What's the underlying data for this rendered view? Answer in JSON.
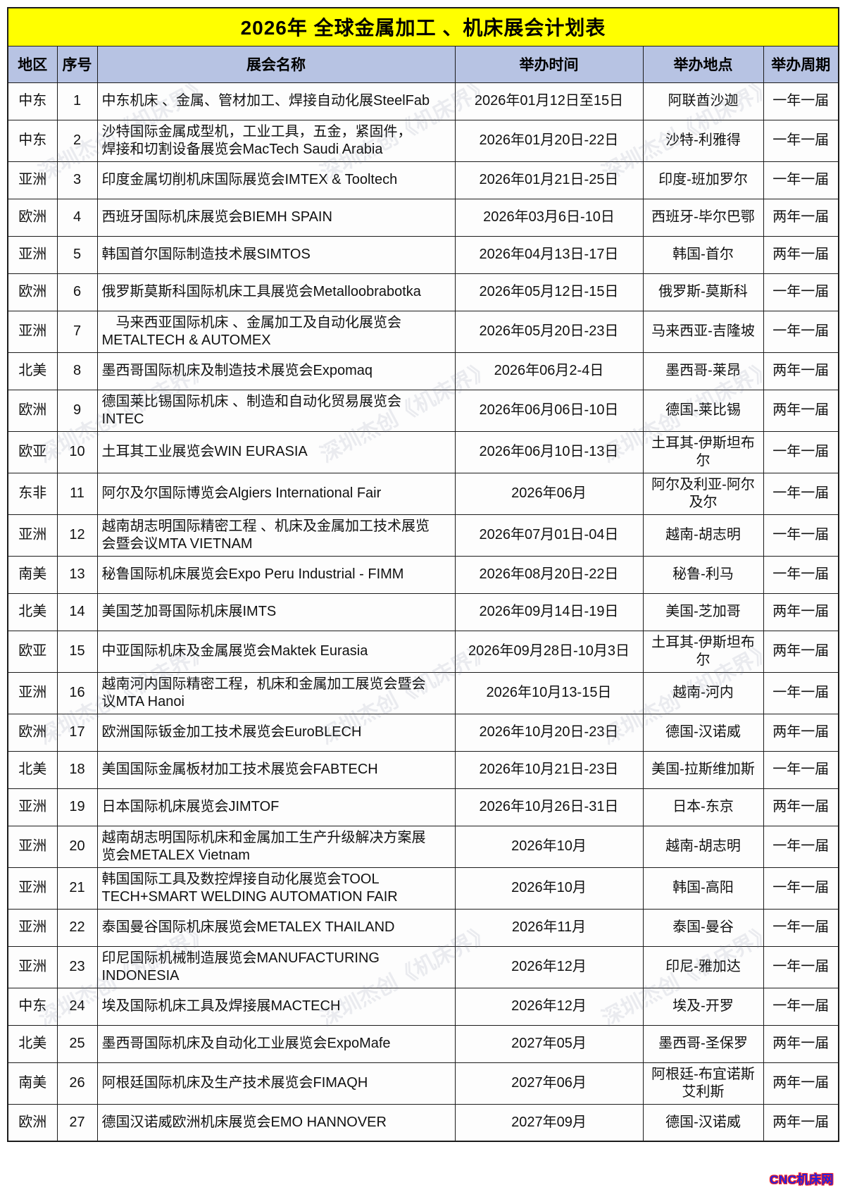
{
  "page": {
    "title": "2026年 全球金属加工 、机床展会计划表",
    "watermark_text": "深圳杰创《机床界》",
    "corner_logo": "CNC机床网"
  },
  "colors": {
    "title_bg": "#ffff00",
    "header_bg": "#b7c3e3",
    "border": "#1c1c1c",
    "logo_blue": "#2222dd",
    "logo_red": "#ff2222"
  },
  "table": {
    "columns": [
      "地区",
      "序号",
      "展会名称",
      "举办时间",
      "举办地点",
      "举办周期"
    ],
    "rows": [
      {
        "region": "中东",
        "no": "1",
        "name": "中东机床 、金属、管材加工、焊接自动化展SteelFab",
        "time": "2026年01月12日至15日",
        "location": "阿联酋沙迦",
        "cycle": "一年一届",
        "group_start": true
      },
      {
        "region": "中东",
        "no": "2",
        "name": "沙特国际金属成型机，工业工具，五金，紧固件，\n焊接和切割设备展览会MacTech Saudi Arabia",
        "time": "2026年01月20日-22日",
        "location": "沙特-利雅得",
        "cycle": "一年一届",
        "group_start": false
      },
      {
        "region": "亚洲",
        "no": "3",
        "name": "印度金属切削机床国际展览会IMTEX & Tooltech",
        "time": "2026年01月21日-25日",
        "location": "印度-班加罗尔",
        "cycle": "一年一届",
        "group_start": false
      },
      {
        "region": "欧洲",
        "no": "4",
        "name": "西班牙国际机床展览会BIEMH SPAIN",
        "time": "2026年03月6日-10日",
        "location": "西班牙-毕尔巴鄂",
        "cycle": "两年一届",
        "group_start": false
      },
      {
        "region": "亚洲",
        "no": "5",
        "name": "韩国首尔国际制造技术展SIMTOS",
        "time": "2026年04月13日-17日",
        "location": "韩国-首尔",
        "cycle": "两年一届",
        "group_start": false
      },
      {
        "region": "欧洲",
        "no": "6",
        "name": "俄罗斯莫斯科国际机床工具展览会Metalloobrabotka",
        "time": "2026年05月12日-15日",
        "location": "俄罗斯-莫斯科",
        "cycle": "一年一届",
        "group_start": true
      },
      {
        "region": "亚洲",
        "no": "7",
        "name": "　马来西亚国际机床 、金属加工及自动化展览会\nMETALTECH & AUTOMEX",
        "time": "2026年05月20日-23日",
        "location": "马来西亚-吉隆坡",
        "cycle": "一年一届",
        "group_start": true
      },
      {
        "region": "北美",
        "no": "8",
        "name": "墨西哥国际机床及制造技术展览会Expomaq",
        "time": "2026年06月2-4日",
        "location": "墨西哥-莱昂",
        "cycle": "两年一届",
        "group_start": true
      },
      {
        "region": "欧洲",
        "no": "9",
        "name": "德国莱比锡国际机床 、制造和自动化贸易展览会\nINTEC",
        "time": "2026年06月06日-10日",
        "location": "德国-莱比锡",
        "cycle": "两年一届",
        "group_start": true
      },
      {
        "region": "欧亚",
        "no": "10",
        "name": "土耳其工业展览会WIN EURASIA",
        "time": "2026年06月10日-13日",
        "location": "土耳其-伊斯坦布尔",
        "cycle": "一年一届",
        "group_start": true
      },
      {
        "region": "东非",
        "no": "11",
        "name": "阿尔及尔国际博览会Algiers International Fair",
        "time": "2026年06月",
        "location": "阿尔及利亚-阿尔及尔",
        "cycle": "一年一届",
        "group_start": true
      },
      {
        "region": "亚洲",
        "no": "12",
        "name": "越南胡志明国际精密工程 、机床及金属加工技术展览\n会暨会议MTA VIETNAM",
        "time": "2026年07月01日-04日",
        "location": "越南-胡志明",
        "cycle": "一年一届",
        "group_start": true
      },
      {
        "region": "南美",
        "no": "13",
        "name": "秘鲁国际机床展览会Expo Peru Industrial - FIMM",
        "time": "2026年08月20日-22日",
        "location": "秘鲁-利马",
        "cycle": "一年一届",
        "group_start": false
      },
      {
        "region": "北美",
        "no": "14",
        "name": "美国芝加哥国际机床展IMTS",
        "time": "2026年09月14日-19日",
        "location": "美国-芝加哥",
        "cycle": "两年一届",
        "group_start": false
      },
      {
        "region": "欧亚",
        "no": "15",
        "name": "中亚国际机床及金属展览会Maktek Eurasia",
        "time": "2026年09月28日-10月3日",
        "location": "土耳其-伊斯坦布尔",
        "cycle": "两年一届",
        "group_start": false
      },
      {
        "region": "亚洲",
        "no": "16",
        "name": "越南河内国际精密工程，机床和金属加工展览会暨会\n议MTA Hanoi",
        "time": "2026年10月13-15日",
        "location": "越南-河内",
        "cycle": "一年一届",
        "group_start": false
      },
      {
        "region": "欧洲",
        "no": "17",
        "name": "欧洲国际钣金加工技术展览会EuroBLECH",
        "time": "2026年10月20日-23日",
        "location": "德国-汉诺威",
        "cycle": "两年一届",
        "group_start": true
      },
      {
        "region": "北美",
        "no": "18",
        "name": "美国国际金属板材加工技术展览会FABTECH",
        "time": "2026年10月21日-23日",
        "location": "美国-拉斯维加斯",
        "cycle": "一年一届",
        "group_start": true
      },
      {
        "region": "亚洲",
        "no": "19",
        "name": "日本国际机床展览会JIMTOF",
        "time": "2026年10月26日-31日",
        "location": "日本-东京",
        "cycle": "两年一届",
        "group_start": true
      },
      {
        "region": "亚洲",
        "no": "20",
        "name": "越南胡志明国际机床和金属加工生产升级解决方案展\n览会METALEX Vietnam",
        "time": "2026年10月",
        "location": "越南-胡志明",
        "cycle": "一年一届",
        "group_start": true
      },
      {
        "region": "亚洲",
        "no": "21",
        "name": "韩国国际工具及数控焊接自动化展览会TOOL\nTECH+SMART WELDING AUTOMATION FAIR",
        "time": "2026年10月",
        "location": "韩国-高阳",
        "cycle": "一年一届",
        "group_start": false
      },
      {
        "region": "亚洲",
        "no": "22",
        "name": "泰国曼谷国际机床展览会METALEX THAILAND",
        "time": "2026年11月",
        "location": "泰国-曼谷",
        "cycle": "一年一届",
        "group_start": false
      },
      {
        "region": "亚洲",
        "no": "23",
        "name": "印尼国际机械制造展览会MANUFACTURING\nINDONESIA",
        "time": "2026年12月",
        "location": "印尼-雅加达",
        "cycle": "一年一届",
        "group_start": false
      },
      {
        "region": "中东",
        "no": "24",
        "name": "埃及国际机床工具及焊接展MACTECH",
        "time": "2026年12月",
        "location": "埃及-开罗",
        "cycle": "一年一届",
        "group_start": false
      },
      {
        "region": "北美",
        "no": "25",
        "name": "墨西哥国际机床及自动化工业展览会ExpoMafe",
        "time": "2027年05月",
        "location": "墨西哥-圣保罗",
        "cycle": "两年一届",
        "group_start": true
      },
      {
        "region": "南美",
        "no": "26",
        "name": "阿根廷国际机床及生产技术展览会FIMAQH",
        "time": "2027年06月",
        "location": "阿根廷-布宜诺斯艾利斯",
        "cycle": "两年一届",
        "group_start": true
      },
      {
        "region": "欧洲",
        "no": "27",
        "name": "德国汉诺威欧洲机床展览会EMO HANNOVER",
        "time": "2027年09月",
        "location": "德国-汉诺威",
        "cycle": "两年一届",
        "group_start": true
      }
    ]
  }
}
